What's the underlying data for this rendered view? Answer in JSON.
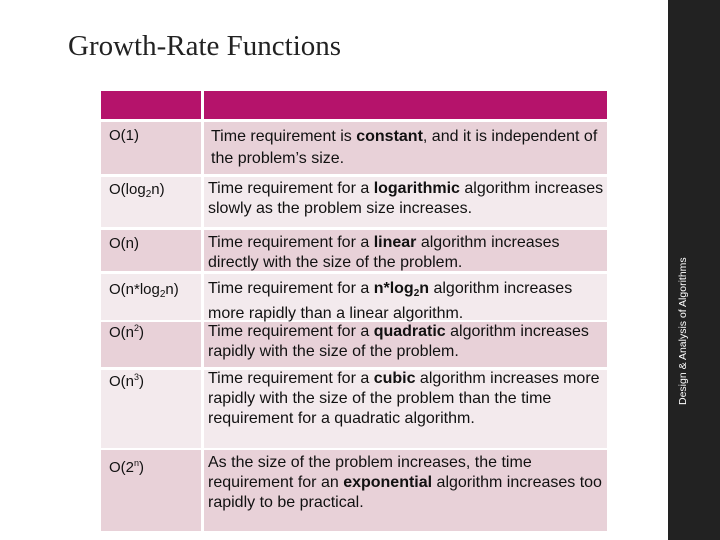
{
  "slide": {
    "title": "Growth-Rate Functions",
    "sidebar_text": "Design & Analysis of Algorithms"
  },
  "rows": [
    {
      "label_parts": [
        "O(1)"
      ],
      "desc_parts": [
        "Time requirement is ",
        "constant",
        ", and it is independent of the problem’s size."
      ]
    },
    {
      "label_parts": [
        "O(log",
        "2",
        "n)"
      ],
      "desc_parts": [
        "Time requirement for a ",
        "logarithmic",
        " algorithm increases slowly as the problem size increases."
      ]
    },
    {
      "label_parts": [
        "O(n)"
      ],
      "desc_parts": [
        "Time requirement for a ",
        "linear",
        " algorithm increases directly with the size of the problem."
      ]
    },
    {
      "label_parts": [
        "O(n*log",
        "2",
        "n)"
      ],
      "desc_parts": [
        "Time requirement for a ",
        "n*log",
        "2",
        "n",
        " algorithm increases more rapidly than a linear algorithm."
      ]
    },
    {
      "label_parts": [
        "O(n",
        "2",
        ")"
      ],
      "desc_parts": [
        "Time requirement for a ",
        "quadratic",
        " algorithm increases rapidly with the size of the problem."
      ]
    },
    {
      "label_parts": [
        "O(n",
        "3",
        ")"
      ],
      "desc_parts": [
        "Time requirement for a ",
        "cubic",
        " algorithm increases more rapidly with the size of the problem than the time requirement for a quadratic algorithm."
      ]
    },
    {
      "label_parts": [
        "O(2",
        "n",
        ")"
      ],
      "desc_parts": [
        "As the size of the problem increases, the time requirement for an ",
        "exponential",
        " algorithm increases too rapidly to be practical."
      ]
    }
  ],
  "colors": {
    "header": "#b5136b",
    "row_dark": "#e8d1d8",
    "row_light": "#f3eaed",
    "sidebar": "#222222"
  }
}
